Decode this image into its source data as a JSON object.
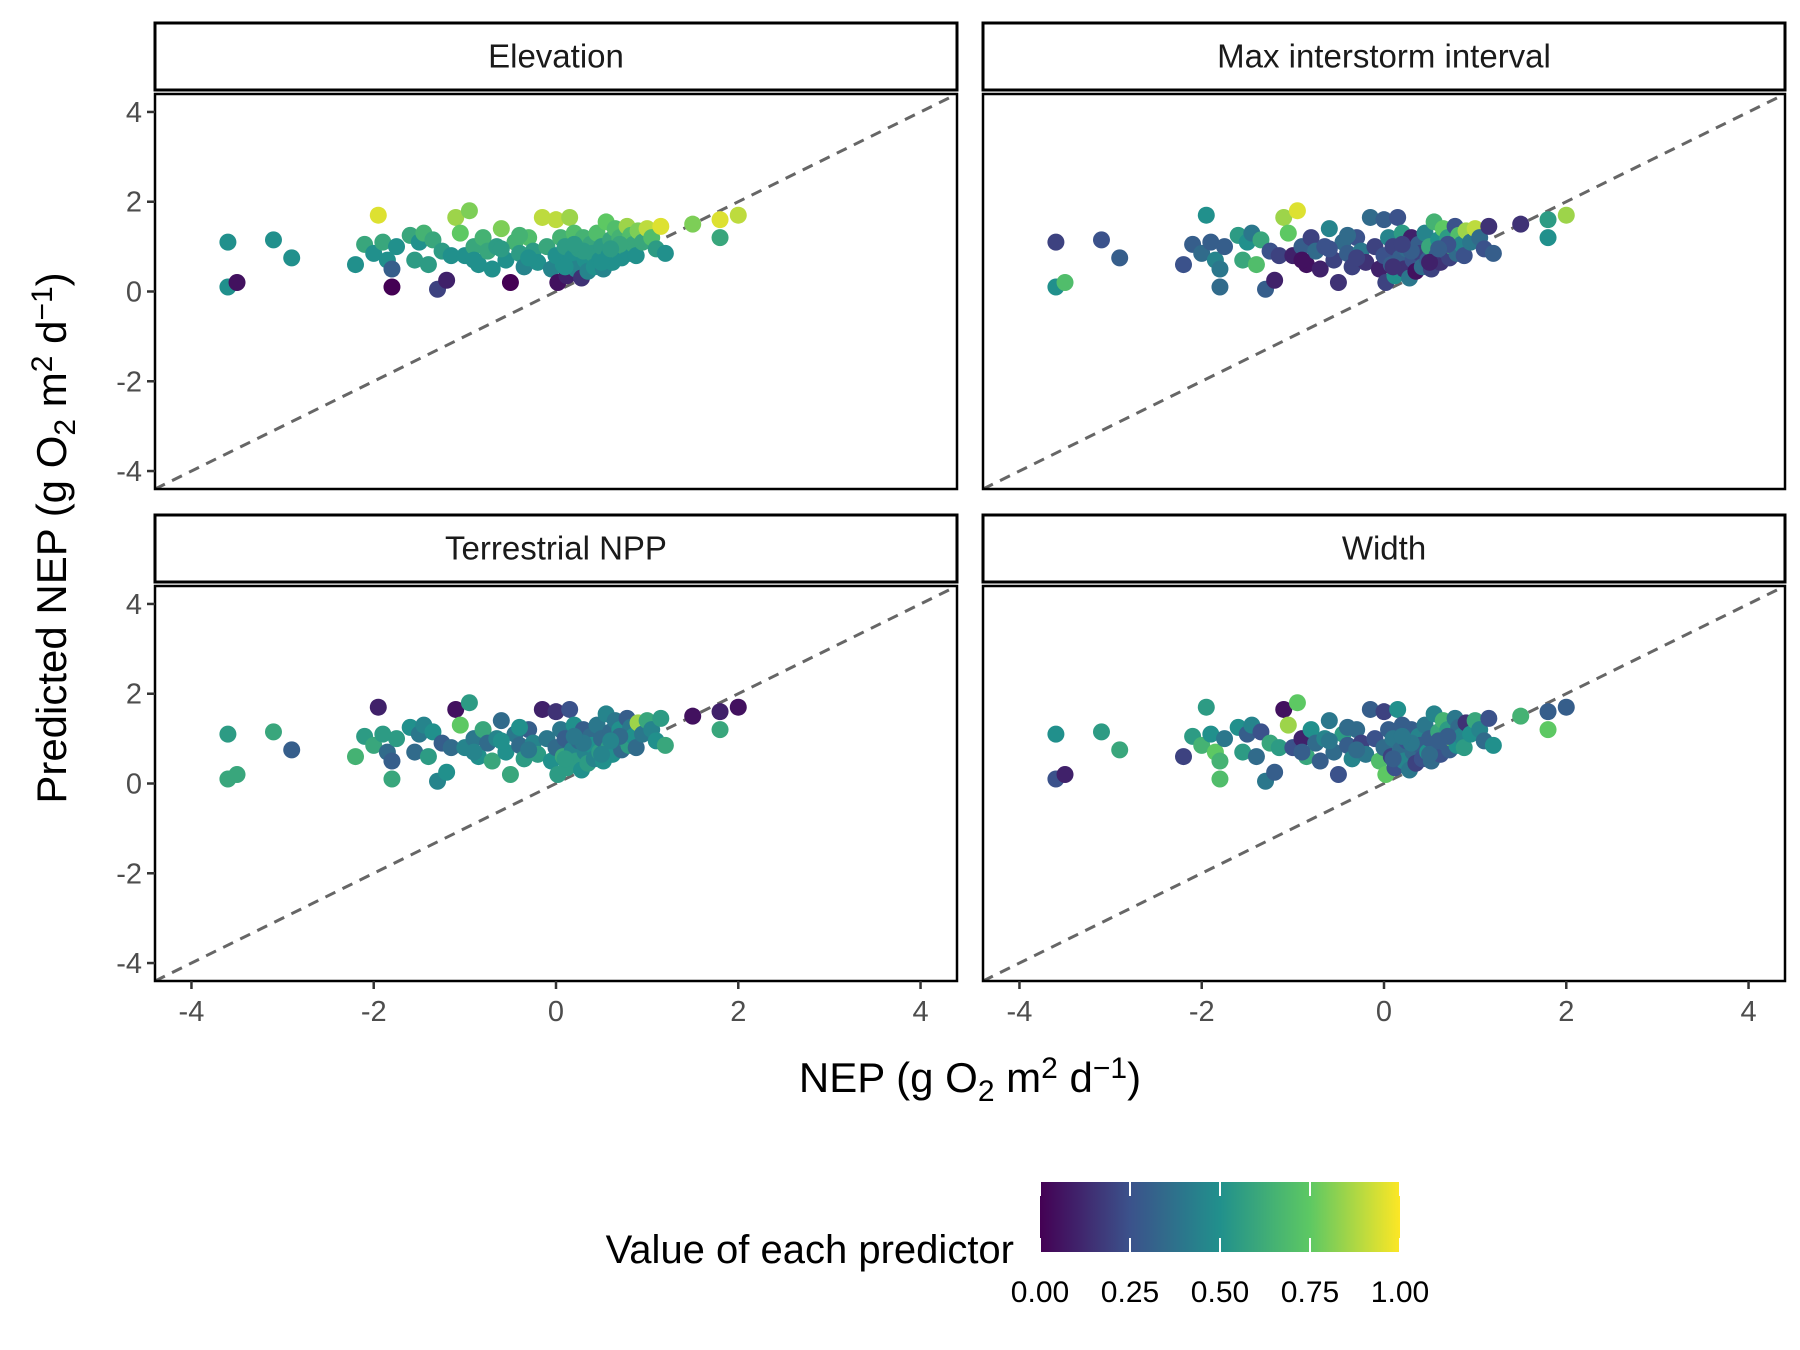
{
  "chart_data": {
    "type": "scatter",
    "facet_layout": "2x2",
    "panels": [
      "Elevation",
      "Max interstorm interval",
      "Terrestrial NPP",
      "Width"
    ],
    "xlabel": {
      "main": "NEP (g  O",
      "sub": "2",
      "mid": " m",
      "sup1": "2",
      "mid2": " d",
      "sup2": "−1",
      "end": ")"
    },
    "ylabel": {
      "main": "Predicted NEP (g  O",
      "sub": "2",
      "mid": " m",
      "sup1": "2",
      "mid2": " d",
      "sup2": "−1",
      "end": ")"
    },
    "xlim": [
      -4.4,
      4.4
    ],
    "ylim": [
      -4.4,
      4.4
    ],
    "x_ticks": [
      -4,
      -2,
      0,
      2,
      4
    ],
    "y_ticks": [
      -4,
      -2,
      0,
      2,
      4
    ],
    "x_tick_labels": [
      "-4",
      "-2",
      "0",
      "2",
      "4"
    ],
    "y_tick_labels": [
      "-4",
      "-2",
      "0",
      "2",
      "4"
    ],
    "reference_line": {
      "slope": 1,
      "intercept": 0,
      "style": "dashed",
      "color": "#666666"
    },
    "grid": false,
    "color_scale": {
      "title": "Value of each predictor",
      "palette": "viridis",
      "stops": [
        "#440154",
        "#3B528B",
        "#21908C",
        "#5DC863",
        "#FDE725"
      ],
      "range": [
        0,
        1
      ],
      "breaks": [
        0,
        0.25,
        0.5,
        0.75,
        1
      ],
      "break_labels": [
        "0.00",
        "0.25",
        "0.50",
        "0.75",
        "1.00"
      ],
      "position": "bottom"
    },
    "points": [
      {
        "x": -3.6,
        "y": 0.1
      },
      {
        "x": -3.6,
        "y": 1.1
      },
      {
        "x": -3.5,
        "y": 0.2
      },
      {
        "x": -3.1,
        "y": 1.15
      },
      {
        "x": -2.9,
        "y": 0.75
      },
      {
        "x": -2.2,
        "y": 0.6
      },
      {
        "x": -2.1,
        "y": 1.05
      },
      {
        "x": -2.0,
        "y": 0.85
      },
      {
        "x": -1.95,
        "y": 1.7
      },
      {
        "x": -1.9,
        "y": 1.1
      },
      {
        "x": -1.85,
        "y": 0.7
      },
      {
        "x": -1.8,
        "y": 0.1
      },
      {
        "x": -1.8,
        "y": 0.5
      },
      {
        "x": -1.75,
        "y": 1.0
      },
      {
        "x": -1.6,
        "y": 1.25
      },
      {
        "x": -1.55,
        "y": 0.7
      },
      {
        "x": -1.5,
        "y": 1.1
      },
      {
        "x": -1.45,
        "y": 1.3
      },
      {
        "x": -1.4,
        "y": 0.6
      },
      {
        "x": -1.35,
        "y": 1.15
      },
      {
        "x": -1.3,
        "y": 0.05
      },
      {
        "x": -1.25,
        "y": 0.9
      },
      {
        "x": -1.2,
        "y": 0.25
      },
      {
        "x": -1.15,
        "y": 0.8
      },
      {
        "x": -1.1,
        "y": 1.65
      },
      {
        "x": -1.05,
        "y": 1.3
      },
      {
        "x": -1.0,
        "y": 0.8
      },
      {
        "x": -0.95,
        "y": 1.8
      },
      {
        "x": -0.9,
        "y": 1.0
      },
      {
        "x": -0.85,
        "y": 0.6
      },
      {
        "x": -0.8,
        "y": 1.2
      },
      {
        "x": -0.75,
        "y": 0.9
      },
      {
        "x": -0.7,
        "y": 0.5
      },
      {
        "x": -0.65,
        "y": 1.0
      },
      {
        "x": -0.6,
        "y": 1.4
      },
      {
        "x": -0.55,
        "y": 0.7
      },
      {
        "x": -0.5,
        "y": 0.2
      },
      {
        "x": -0.45,
        "y": 1.1
      },
      {
        "x": -0.4,
        "y": 0.85
      },
      {
        "x": -0.35,
        "y": 0.55
      },
      {
        "x": -0.3,
        "y": 1.2
      },
      {
        "x": -0.25,
        "y": 0.9
      },
      {
        "x": -0.2,
        "y": 0.65
      },
      {
        "x": -0.15,
        "y": 1.65
      },
      {
        "x": -0.1,
        "y": 1.0
      },
      {
        "x": -0.05,
        "y": 0.5
      },
      {
        "x": 0.0,
        "y": 1.6
      },
      {
        "x": 0.0,
        "y": 0.8
      },
      {
        "x": 0.02,
        "y": 0.2
      },
      {
        "x": 0.05,
        "y": 1.2
      },
      {
        "x": 0.08,
        "y": 0.6
      },
      {
        "x": 0.1,
        "y": 1.0
      },
      {
        "x": 0.12,
        "y": 0.35
      },
      {
        "x": 0.15,
        "y": 1.65
      },
      {
        "x": 0.18,
        "y": 0.75
      },
      {
        "x": 0.2,
        "y": 1.3
      },
      {
        "x": 0.22,
        "y": 0.5
      },
      {
        "x": 0.25,
        "y": 0.95
      },
      {
        "x": 0.28,
        "y": 0.3
      },
      {
        "x": 0.3,
        "y": 1.2
      },
      {
        "x": 0.32,
        "y": 0.7
      },
      {
        "x": 0.35,
        "y": 0.45
      },
      {
        "x": 0.38,
        "y": 1.05
      },
      {
        "x": 0.4,
        "y": 0.85
      },
      {
        "x": 0.42,
        "y": 0.55
      },
      {
        "x": 0.45,
        "y": 1.3
      },
      {
        "x": 0.48,
        "y": 0.7
      },
      {
        "x": 0.5,
        "y": 1.0
      },
      {
        "x": 0.52,
        "y": 0.5
      },
      {
        "x": 0.55,
        "y": 1.55
      },
      {
        "x": 0.58,
        "y": 0.8
      },
      {
        "x": 0.6,
        "y": 1.15
      },
      {
        "x": 0.62,
        "y": 0.65
      },
      {
        "x": 0.65,
        "y": 1.4
      },
      {
        "x": 0.68,
        "y": 0.9
      },
      {
        "x": 0.7,
        "y": 1.2
      },
      {
        "x": 0.72,
        "y": 0.75
      },
      {
        "x": 0.75,
        "y": 1.0
      },
      {
        "x": 0.78,
        "y": 1.45
      },
      {
        "x": 0.8,
        "y": 0.85
      },
      {
        "x": 0.82,
        "y": 1.25
      },
      {
        "x": 0.85,
        "y": 1.05
      },
      {
        "x": 0.88,
        "y": 0.8
      },
      {
        "x": 0.9,
        "y": 1.35
      },
      {
        "x": 0.95,
        "y": 1.1
      },
      {
        "x": 1.0,
        "y": 1.4
      },
      {
        "x": 1.05,
        "y": 1.2
      },
      {
        "x": 1.1,
        "y": 0.95
      },
      {
        "x": 1.15,
        "y": 1.45
      },
      {
        "x": 1.2,
        "y": 0.85
      },
      {
        "x": -0.9,
        "y": 0.7
      },
      {
        "x": -0.6,
        "y": 0.95
      },
      {
        "x": -0.3,
        "y": 0.75
      },
      {
        "x": 0.1,
        "y": 0.55
      },
      {
        "x": 0.3,
        "y": 0.9
      },
      {
        "x": 0.5,
        "y": 0.65
      },
      {
        "x": 0.7,
        "y": 1.05
      },
      {
        "x": -0.4,
        "y": 1.25
      },
      {
        "x": 0.2,
        "y": 1.05
      },
      {
        "x": 0.6,
        "y": 0.95
      },
      {
        "x": 1.5,
        "y": 1.5
      },
      {
        "x": 1.8,
        "y": 1.2
      },
      {
        "x": 1.8,
        "y": 1.6
      },
      {
        "x": 2.0,
        "y": 1.7
      }
    ],
    "panel_colors": {
      "Elevation": [
        0.5,
        0.5,
        0.05,
        0.5,
        0.5,
        0.5,
        0.6,
        0.5,
        0.95,
        0.6,
        0.5,
        0.0,
        0.3,
        0.5,
        0.6,
        0.55,
        0.5,
        0.65,
        0.55,
        0.6,
        0.2,
        0.55,
        0.1,
        0.5,
        0.85,
        0.75,
        0.5,
        0.8,
        0.6,
        0.5,
        0.65,
        0.6,
        0.5,
        0.55,
        0.8,
        0.5,
        0.0,
        0.65,
        0.55,
        0.45,
        0.7,
        0.55,
        0.5,
        0.9,
        0.6,
        0.45,
        0.9,
        0.5,
        0.05,
        0.65,
        0.5,
        0.55,
        0.1,
        0.85,
        0.5,
        0.7,
        0.45,
        0.55,
        0.15,
        0.65,
        0.5,
        0.45,
        0.6,
        0.55,
        0.5,
        0.7,
        0.5,
        0.55,
        0.45,
        0.75,
        0.5,
        0.6,
        0.5,
        0.7,
        0.55,
        0.65,
        0.5,
        0.6,
        0.85,
        0.5,
        0.7,
        0.6,
        0.5,
        0.8,
        0.6,
        0.9,
        0.7,
        0.55,
        0.95,
        0.5,
        0.5,
        0.55,
        0.5,
        0.5,
        0.55,
        0.5,
        0.6,
        0.65,
        0.55,
        0.55,
        0.8,
        0.6,
        0.95,
        0.9
      ],
      "Max interstorm interval": [
        0.5,
        0.2,
        0.7,
        0.25,
        0.3,
        0.25,
        0.3,
        0.35,
        0.5,
        0.3,
        0.45,
        0.35,
        0.4,
        0.3,
        0.55,
        0.6,
        0.5,
        0.4,
        0.7,
        0.6,
        0.3,
        0.25,
        0.1,
        0.2,
        0.85,
        0.75,
        0.1,
        0.95,
        0.3,
        0.05,
        0.2,
        0.35,
        0.1,
        0.25,
        0.45,
        0.2,
        0.15,
        0.35,
        0.3,
        0.2,
        0.25,
        0.4,
        0.15,
        0.35,
        0.2,
        0.1,
        0.3,
        0.25,
        0.2,
        0.45,
        0.3,
        0.2,
        0.5,
        0.25,
        0.3,
        0.55,
        0.15,
        0.35,
        0.4,
        0.1,
        0.25,
        0.05,
        0.3,
        0.2,
        0.35,
        0.45,
        0.3,
        0.6,
        0.2,
        0.65,
        0.3,
        0.5,
        0.15,
        0.75,
        0.3,
        0.55,
        0.2,
        0.65,
        0.25,
        0.35,
        0.7,
        0.45,
        0.25,
        0.85,
        0.4,
        0.9,
        0.35,
        0.25,
        0.15,
        0.3,
        0.05,
        0.25,
        0.2,
        0.15,
        0.3,
        0.1,
        0.25,
        0.35,
        0.2,
        0.3,
        0.15,
        0.5,
        0.55,
        0.85
      ],
      "Terrestrial NPP": [
        0.6,
        0.55,
        0.6,
        0.6,
        0.3,
        0.65,
        0.55,
        0.6,
        0.1,
        0.55,
        0.35,
        0.6,
        0.3,
        0.55,
        0.5,
        0.35,
        0.4,
        0.45,
        0.55,
        0.5,
        0.45,
        0.3,
        0.5,
        0.35,
        0.05,
        0.75,
        0.45,
        0.55,
        0.4,
        0.5,
        0.6,
        0.35,
        0.6,
        0.45,
        0.35,
        0.5,
        0.6,
        0.4,
        0.35,
        0.55,
        0.3,
        0.45,
        0.55,
        0.1,
        0.4,
        0.5,
        0.15,
        0.35,
        0.55,
        0.4,
        0.6,
        0.3,
        0.55,
        0.25,
        0.45,
        0.5,
        0.55,
        0.35,
        0.5,
        0.3,
        0.45,
        0.55,
        0.35,
        0.5,
        0.45,
        0.4,
        0.55,
        0.35,
        0.5,
        0.45,
        0.55,
        0.35,
        0.5,
        0.4,
        0.45,
        0.5,
        0.35,
        0.45,
        0.3,
        0.55,
        0.4,
        0.5,
        0.35,
        0.85,
        0.4,
        0.6,
        0.45,
        0.5,
        0.55,
        0.6,
        0.45,
        0.5,
        0.4,
        0.55,
        0.4,
        0.45,
        0.35,
        0.5,
        0.4,
        0.45,
        0.05,
        0.6,
        0.1,
        0.05
      ],
      "Width": [
        0.25,
        0.5,
        0.1,
        0.55,
        0.6,
        0.2,
        0.55,
        0.65,
        0.55,
        0.5,
        0.75,
        0.7,
        0.65,
        0.4,
        0.5,
        0.55,
        0.3,
        0.45,
        0.35,
        0.25,
        0.4,
        0.6,
        0.3,
        0.55,
        0.05,
        0.85,
        0.25,
        0.75,
        0.1,
        0.6,
        0.5,
        0.35,
        0.3,
        0.45,
        0.4,
        0.35,
        0.25,
        0.55,
        0.3,
        0.45,
        0.35,
        0.2,
        0.4,
        0.3,
        0.25,
        0.7,
        0.2,
        0.35,
        0.75,
        0.3,
        0.2,
        0.4,
        0.25,
        0.5,
        0.35,
        0.3,
        0.45,
        0.25,
        0.4,
        0.3,
        0.35,
        0.2,
        0.45,
        0.3,
        0.25,
        0.4,
        0.5,
        0.3,
        0.35,
        0.45,
        0.3,
        0.6,
        0.25,
        0.65,
        0.35,
        0.55,
        0.3,
        0.8,
        0.4,
        0.5,
        0.35,
        0.45,
        0.55,
        0.15,
        0.5,
        0.6,
        0.45,
        0.35,
        0.25,
        0.5,
        0.3,
        0.4,
        0.35,
        0.3,
        0.4,
        0.35,
        0.3,
        0.35,
        0.4,
        0.3,
        0.65,
        0.75,
        0.3,
        0.3
      ]
    }
  }
}
